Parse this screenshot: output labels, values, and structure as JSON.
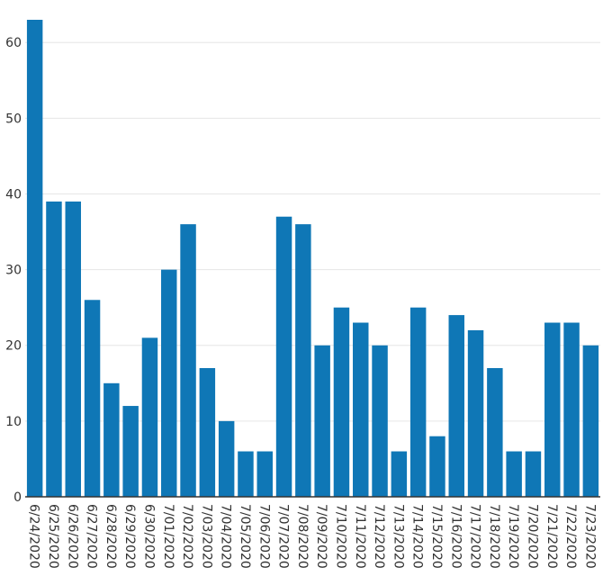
{
  "chart_data": {
    "type": "bar",
    "title": "",
    "xlabel": "",
    "ylabel": "",
    "categories": [
      "6/24/2020",
      "6/25/2020",
      "6/26/2020",
      "6/27/2020",
      "6/28/2020",
      "6/29/2020",
      "6/30/2020",
      "7/01/2020",
      "7/02/2020",
      "7/03/2020",
      "7/04/2020",
      "7/05/2020",
      "7/06/2020",
      "7/07/2020",
      "7/08/2020",
      "7/09/2020",
      "7/10/2020",
      "7/11/2020",
      "7/12/2020",
      "7/13/2020",
      "7/14/2020",
      "7/15/2020",
      "7/16/2020",
      "7/17/2020",
      "7/18/2020",
      "7/19/2020",
      "7/20/2020",
      "7/21/2020",
      "7/22/2020",
      "7/23/2020"
    ],
    "values": [
      63,
      39,
      39,
      26,
      15,
      12,
      21,
      30,
      36,
      17,
      10,
      6,
      6,
      37,
      36,
      20,
      25,
      23,
      20,
      6,
      25,
      8,
      24,
      22,
      17,
      6,
      6,
      23,
      23,
      20
    ],
    "ylim": [
      0,
      63
    ],
    "yticks": [
      0,
      10,
      20,
      30,
      40,
      50,
      60
    ],
    "grid": true,
    "bar_color": "#0f77b6"
  }
}
